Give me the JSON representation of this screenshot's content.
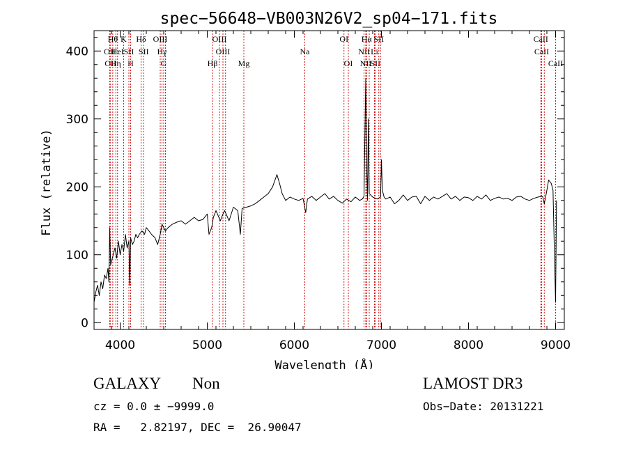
{
  "chart_data": {
    "type": "line",
    "title": "spec−56648−VB003N26V2_sp04−171.fits",
    "xlabel": "Wavelength (Å)",
    "ylabel": "Flux (relative)",
    "xlim": [
      3700,
      9100
    ],
    "ylim": [
      -10,
      430
    ],
    "xticks": [
      4000,
      5000,
      6000,
      7000,
      8000,
      9000
    ],
    "yticks": [
      0,
      100,
      200,
      300,
      400
    ],
    "line_color": "#000000",
    "marker_color": "#cc0000",
    "series": [
      {
        "x": [
          3700,
          3720,
          3740,
          3760,
          3780,
          3800,
          3820,
          3840,
          3860,
          3870,
          3880,
          3890,
          3900,
          3920,
          3940,
          3960,
          3980,
          4000,
          4020,
          4040,
          4060,
          4080,
          4100,
          4110,
          4120,
          4140,
          4160,
          4180,
          4200,
          4220,
          4250,
          4280,
          4300,
          4330,
          4360,
          4400,
          4430,
          4460,
          4480,
          4500,
          4520,
          4550,
          4600,
          4650,
          4700,
          4750,
          4800,
          4850,
          4900,
          4950,
          5000,
          5020,
          5050,
          5070,
          5100,
          5150,
          5180,
          5200,
          5250,
          5300,
          5350,
          5380,
          5400,
          5450,
          5500,
          5550,
          5600,
          5650,
          5700,
          5750,
          5800,
          5830,
          5860,
          5900,
          5950,
          6000,
          6050,
          6100,
          6130,
          6150,
          6200,
          6250,
          6300,
          6350,
          6400,
          6450,
          6500,
          6550,
          6600,
          6650,
          6700,
          6750,
          6780,
          6800,
          6820,
          6830,
          6840,
          6850,
          6860,
          6900,
          6950,
          6990,
          7000,
          7010,
          7030,
          7050,
          7100,
          7150,
          7200,
          7250,
          7300,
          7350,
          7400,
          7450,
          7500,
          7550,
          7600,
          7650,
          7700,
          7750,
          7800,
          7850,
          7900,
          7950,
          8000,
          8050,
          8100,
          8150,
          8200,
          8250,
          8300,
          8350,
          8400,
          8450,
          8500,
          8550,
          8600,
          8650,
          8700,
          8750,
          8800,
          8850,
          8870,
          8900,
          8920,
          8950,
          8970,
          8990,
          9000,
          9010
        ],
        "y": [
          30,
          45,
          55,
          40,
          60,
          50,
          70,
          65,
          80,
          60,
          140,
          85,
          90,
          100,
          110,
          95,
          120,
          100,
          115,
          105,
          130,
          110,
          120,
          55,
          125,
          115,
          120,
          130,
          125,
          130,
          135,
          130,
          140,
          135,
          130,
          125,
          115,
          130,
          145,
          140,
          135,
          140,
          145,
          148,
          150,
          145,
          150,
          155,
          150,
          152,
          160,
          130,
          140,
          155,
          165,
          150,
          160,
          165,
          150,
          170,
          165,
          130,
          168,
          170,
          172,
          175,
          180,
          185,
          190,
          200,
          218,
          205,
          190,
          180,
          185,
          182,
          180,
          183,
          162,
          182,
          186,
          180,
          185,
          190,
          182,
          186,
          180,
          176,
          182,
          178,
          185,
          180,
          182,
          186,
          360,
          230,
          180,
          300,
          190,
          185,
          182,
          185,
          240,
          195,
          185,
          182,
          185,
          175,
          180,
          188,
          180,
          185,
          186,
          175,
          186,
          180,
          185,
          182,
          186,
          190,
          182,
          186,
          180,
          185,
          184,
          180,
          186,
          182,
          188,
          180,
          183,
          185,
          182,
          183,
          180,
          185,
          186,
          182,
          180,
          183,
          185,
          186,
          175,
          195,
          210,
          205,
          195,
          80,
          30,
          180
        ]
      }
    ],
    "lines": [
      {
        "x": 3880,
        "label": "OII",
        "row": 2
      },
      {
        "x": 3890,
        "label": "OII",
        "row": 3
      },
      {
        "x": 3915,
        "label": "Hθ",
        "row": 1
      },
      {
        "x": 3950,
        "label": "Hη",
        "row": 3
      },
      {
        "x": 3970,
        "label": "HeI",
        "row": 2
      },
      {
        "x": 4040,
        "label": "K",
        "row": 1
      },
      {
        "x": 4100,
        "label": "SII",
        "row": 2
      },
      {
        "x": 4120,
        "label": "H",
        "row": 3
      },
      {
        "x": 4240,
        "label": "Hδ",
        "row": 1
      },
      {
        "x": 4270,
        "label": "SII",
        "row": 2
      },
      {
        "x": 4460,
        "label": "OIII",
        "row": 1
      },
      {
        "x": 4480,
        "label": "Hγ",
        "row": 2
      },
      {
        "x": 4500,
        "label": "G",
        "row": 3
      },
      {
        "x": 4520,
        "label": "",
        "row": 0
      },
      {
        "x": 5060,
        "label": "Hβ",
        "row": 3
      },
      {
        "x": 5140,
        "label": "OIII",
        "row": 1
      },
      {
        "x": 5180,
        "label": "OIII",
        "row": 2
      },
      {
        "x": 5210,
        "label": "",
        "row": 0
      },
      {
        "x": 5420,
        "label": "Mg",
        "row": 3
      },
      {
        "x": 6120,
        "label": "Na",
        "row": 2
      },
      {
        "x": 6570,
        "label": "OI",
        "row": 1
      },
      {
        "x": 6620,
        "label": "OI",
        "row": 3
      },
      {
        "x": 6800,
        "label": "NII",
        "row": 2
      },
      {
        "x": 6830,
        "label": "Hα",
        "row": 1
      },
      {
        "x": 6820,
        "label": "NII",
        "row": 3
      },
      {
        "x": 6860,
        "label": "",
        "row": 0
      },
      {
        "x": 6920,
        "label": "Li",
        "row": 2
      },
      {
        "x": 6930,
        "label": "SII",
        "row": 3
      },
      {
        "x": 6970,
        "label": "SII",
        "row": 1
      },
      {
        "x": 6990,
        "label": "",
        "row": 0
      },
      {
        "x": 8830,
        "label": "CaII",
        "row": 1
      },
      {
        "x": 8840,
        "label": "CaII",
        "row": 2
      },
      {
        "x": 8870,
        "label": "",
        "row": 0
      },
      {
        "x": 9000,
        "label": "CaII",
        "row": 3
      }
    ]
  },
  "info": {
    "class_label": "GALAXY",
    "subclass_label": "Non",
    "survey_label": "LAMOST DR3",
    "cz_text": "cz = 0.0 ± −9999.0",
    "obs_date_text": "Obs−Date: 20131221",
    "radec_text": "RA =   2.82197, DEC =  26.90047"
  }
}
